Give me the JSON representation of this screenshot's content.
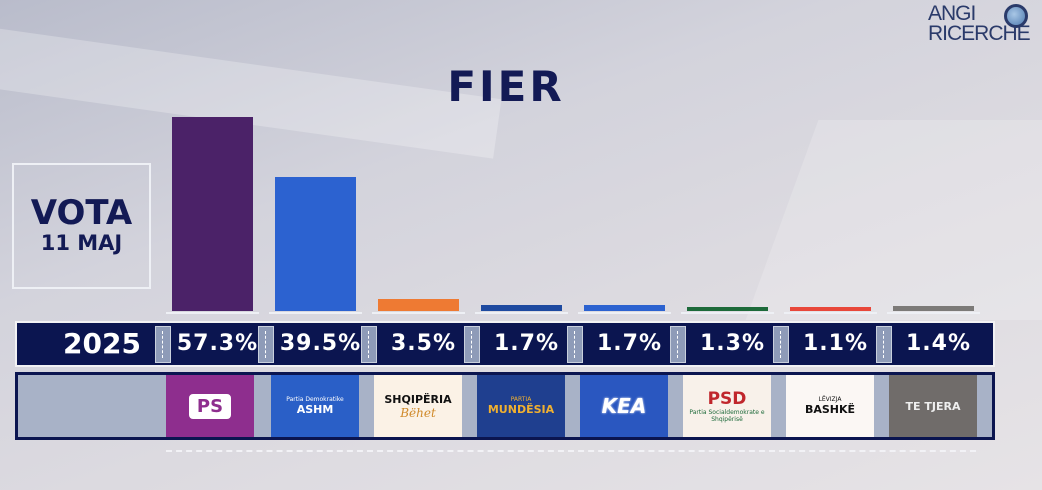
{
  "brand": "ANGI RICERCHE",
  "brand_lines": [
    "ANGI",
    "RICERCHE"
  ],
  "title": "FIER",
  "label": {
    "line1": "VOTA",
    "line2": "11 MAJ"
  },
  "chart_data": {
    "type": "bar",
    "title": "FIER",
    "series_label": "2025",
    "categories": [
      "PS",
      "ASHM",
      "Shqipëria Bëhet",
      "Mundësia",
      "KEA",
      "PSD",
      "Bashkë",
      "TE TJERA"
    ],
    "values": [
      57.3,
      39.5,
      3.5,
      1.7,
      1.7,
      1.3,
      1.1,
      1.4
    ],
    "value_labels": [
      "57.3%",
      "39.5%",
      "3.5%",
      "1.7%",
      "1.7%",
      "1.3%",
      "1.1%",
      "1.4%"
    ],
    "colors": [
      "#4b2268",
      "#2c62d0",
      "#ee7a33",
      "#1e4aa0",
      "#2c62d0",
      "#1d6a3a",
      "#e8473a",
      "#7c7a78"
    ],
    "grid": false
  },
  "logos": [
    {
      "text": "PS",
      "sub": "",
      "bg": "#8e2e8e",
      "fg": "#fff"
    },
    {
      "text": "ASHM",
      "sub": "Partia Demokratike",
      "bg": "#2a5fc7",
      "fg": "#fff"
    },
    {
      "text": "SHQIPËRIA",
      "sub": "Bëhet",
      "bg": "#fbf2e6",
      "fg": "#111"
    },
    {
      "text": "MUNDËSIA",
      "sub": "PARTIA",
      "bg": "#1f3f8f",
      "fg": "#f0b030"
    },
    {
      "text": "KEA",
      "sub": "",
      "bg": "#2a57c0",
      "fg": "#fff"
    },
    {
      "text": "PSD",
      "sub": "Partia Socialdemokrate e Shqipërisë",
      "bg": "#f8f1ea",
      "fg": "#c0262c"
    },
    {
      "text": "BASHKË",
      "sub": "LËVIZJA",
      "bg": "#fbf7f4",
      "fg": "#111"
    },
    {
      "text": "TE TJERA",
      "sub": "",
      "bg": "#706c6a",
      "fg": "#eee"
    }
  ]
}
